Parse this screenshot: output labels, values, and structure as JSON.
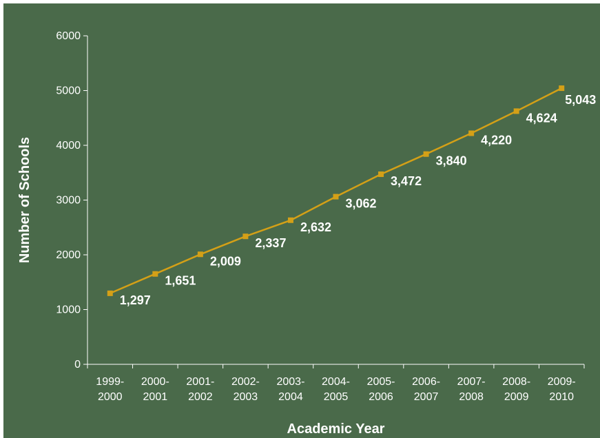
{
  "chart_data": {
    "type": "line",
    "title": "",
    "xlabel": "Academic Year",
    "ylabel": "Number of Schools",
    "categories": [
      [
        "1999-",
        "2000"
      ],
      [
        "2000-",
        "2001"
      ],
      [
        "2001-",
        "2002"
      ],
      [
        "2002-",
        "2003"
      ],
      [
        "2003-",
        "2004"
      ],
      [
        "2004-",
        "2005"
      ],
      [
        "2005-",
        "2006"
      ],
      [
        "2006-",
        "2007"
      ],
      [
        "2007-",
        "2008"
      ],
      [
        "2008-",
        "2009"
      ],
      [
        "2009-",
        "2010"
      ]
    ],
    "values": [
      1297,
      1651,
      2009,
      2337,
      2632,
      3062,
      3472,
      3840,
      4220,
      4624,
      5043
    ],
    "data_labels": [
      "1,297",
      "1,651",
      "2,009",
      "2,337",
      "2,632",
      "3,062",
      "3,472",
      "3,840",
      "4,220",
      "4,624",
      "5,043"
    ],
    "yticks": [
      0,
      1000,
      2000,
      3000,
      4000,
      5000,
      6000
    ],
    "ylim": [
      0,
      6000
    ],
    "grid": false,
    "legend": "none",
    "colors": {
      "background": "#4a6a4a",
      "line": "#d4a017",
      "marker": "#d4a017",
      "axis": "#ffffff",
      "text": "#ffffff"
    }
  }
}
